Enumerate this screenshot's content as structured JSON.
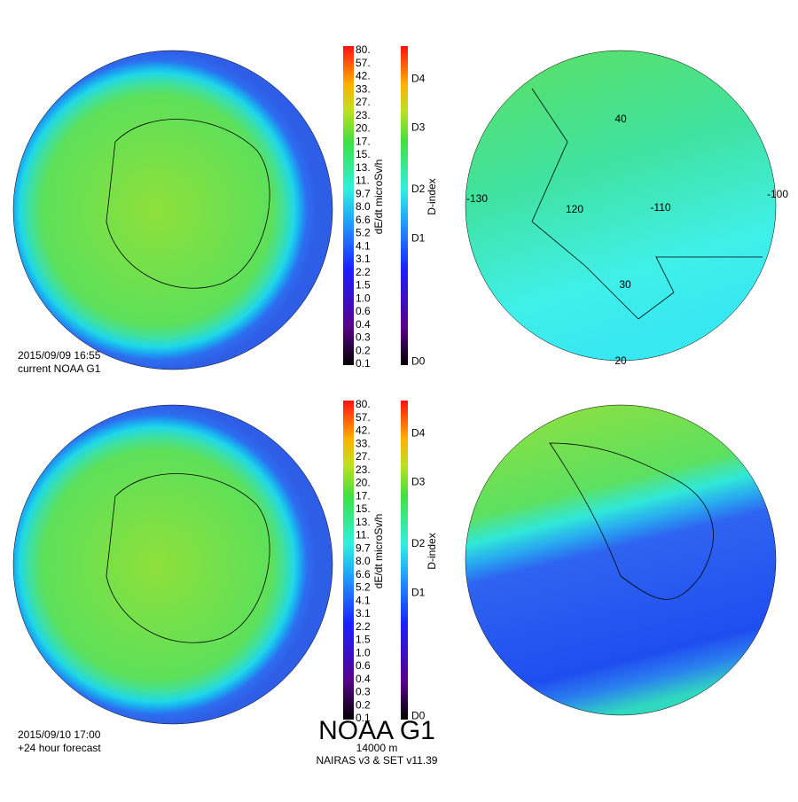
{
  "panels": [
    {
      "timestamp": "2015/09/09 16:55",
      "caption": "current NOAA G1",
      "colorbar": {
        "title": "dE/dt microSv/h",
        "ticks": [
          "80.",
          "57.",
          "42.",
          "33.",
          "27.",
          "23.",
          "20.",
          "17.",
          "15.",
          "13.",
          "11.",
          "9.7",
          "8.0",
          "6.6",
          "5.2",
          "4.1",
          "3.1",
          "2.2",
          "1.5",
          "1.0",
          "0.6",
          "0.4",
          "0.3",
          "0.2",
          "0.1"
        ]
      },
      "dindex": {
        "title": "D-index",
        "ticks": [
          "D4",
          "D3",
          "D2",
          "D1",
          "D0"
        ]
      },
      "map_labels": [
        "40",
        "-130",
        "120",
        "-110",
        "-100",
        "30",
        "20"
      ]
    },
    {
      "timestamp": "2015/09/10 17:00",
      "caption": "+24 hour forecast",
      "colorbar": {
        "title": "dE/dt microSv/h",
        "ticks": [
          "80.",
          "57.",
          "42.",
          "33.",
          "27.",
          "23.",
          "20.",
          "17.",
          "15.",
          "13.",
          "11.",
          "9.7",
          "8.0",
          "6.6",
          "5.2",
          "4.1",
          "3.1",
          "2.2",
          "1.5",
          "1.0",
          "0.6",
          "0.4",
          "0.3",
          "0.2",
          "0.1"
        ]
      },
      "dindex": {
        "title": "D-index",
        "ticks": [
          "D4",
          "D3",
          "D2",
          "D1",
          "D0"
        ]
      }
    }
  ],
  "footer": {
    "title": "NOAA G1",
    "altitude": "14000 m",
    "model": "NAIRAS v3 & SET v11.39"
  }
}
